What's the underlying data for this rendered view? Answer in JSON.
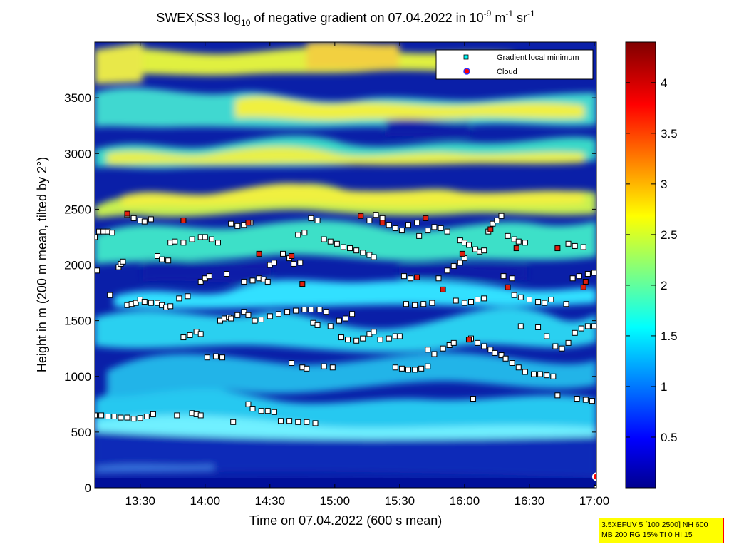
{
  "chart_data": {
    "type": "heatmap",
    "title": {
      "prefix": "SWEX",
      "sub1": "l",
      "mid": "SS3 log",
      "sub2": "10",
      "rest": " of negative gradient on 07.04.2022 in 10",
      "sup1": "-9",
      "unit1": " m",
      "sup2": "-1",
      "unit2": " sr",
      "sup3": "-1"
    },
    "xlabel": "Time on 07.04.2022 (600 s mean)",
    "ylabel": "Height in m (200 m mean, tilted by 2°)",
    "x_ticks": [
      "13:30",
      "14:00",
      "14:30",
      "15:00",
      "15:30",
      "16:00",
      "16:30",
      "17:00"
    ],
    "x_tick_minutes": [
      810,
      840,
      870,
      900,
      930,
      960,
      990,
      1020
    ],
    "xlim_minutes": [
      789,
      1021
    ],
    "y_ticks": [
      0,
      500,
      1000,
      1500,
      2000,
      2500,
      3000,
      3500
    ],
    "ylim": [
      0,
      4000
    ],
    "colorbar": {
      "range": [
        0,
        4.4
      ],
      "ticks": [
        "0.5",
        "1",
        "1.5",
        "2",
        "2.5",
        "3",
        "3.5",
        "4"
      ],
      "tick_values": [
        0.5,
        1,
        1.5,
        2,
        2.5,
        3,
        3.5,
        4
      ]
    },
    "legend": {
      "placement": "top-right",
      "entries": [
        {
          "label": "Gradient local minimum",
          "color": "#00ffff"
        },
        {
          "label": "Cloud",
          "color": "#ff0000"
        }
      ]
    },
    "series": [
      {
        "name": "Gradient local minimum",
        "points": [
          [
            789,
            2250
          ],
          [
            791,
            2300
          ],
          [
            793,
            2300
          ],
          [
            795,
            2300
          ],
          [
            797,
            2290
          ],
          [
            790,
            1950
          ],
          [
            796,
            1730
          ],
          [
            800,
            1980
          ],
          [
            801,
            2010
          ],
          [
            802,
            2030
          ],
          [
            789,
            650
          ],
          [
            792,
            650
          ],
          [
            795,
            640
          ],
          [
            798,
            640
          ],
          [
            801,
            630
          ],
          [
            804,
            630
          ],
          [
            807,
            620
          ],
          [
            810,
            625
          ],
          [
            813,
            640
          ],
          [
            816,
            660
          ],
          [
            804,
            1640
          ],
          [
            806,
            1650
          ],
          [
            808,
            1660
          ],
          [
            810,
            1690
          ],
          [
            812,
            1670
          ],
          [
            815,
            1660
          ],
          [
            818,
            1660
          ],
          [
            820,
            1640
          ],
          [
            822,
            1620
          ],
          [
            824,
            1630
          ],
          [
            804,
            2450
          ],
          [
            807,
            2420
          ],
          [
            810,
            2400
          ],
          [
            812,
            2390
          ],
          [
            815,
            2410
          ],
          [
            818,
            2080
          ],
          [
            820,
            2050
          ],
          [
            824,
            2200
          ],
          [
            826,
            2210
          ],
          [
            823,
            2040
          ],
          [
            827,
            650
          ],
          [
            834,
            670
          ],
          [
            836,
            660
          ],
          [
            838,
            650
          ],
          [
            830,
            1350
          ],
          [
            833,
            1370
          ],
          [
            836,
            1400
          ],
          [
            838,
            1380
          ],
          [
            828,
            1700
          ],
          [
            832,
            1720
          ],
          [
            830,
            2200
          ],
          [
            834,
            2230
          ],
          [
            838,
            2250
          ],
          [
            840,
            2250
          ],
          [
            843,
            2230
          ],
          [
            846,
            2200
          ],
          [
            838,
            1850
          ],
          [
            840,
            1880
          ],
          [
            842,
            1900
          ],
          [
            850,
            1920
          ],
          [
            841,
            1170
          ],
          [
            845,
            1180
          ],
          [
            848,
            1170
          ],
          [
            847,
            1500
          ],
          [
            849,
            1520
          ],
          [
            851,
            1530
          ],
          [
            852,
            1520
          ],
          [
            855,
            1550
          ],
          [
            858,
            1580
          ],
          [
            860,
            1550
          ],
          [
            852,
            2370
          ],
          [
            855,
            2350
          ],
          [
            858,
            2360
          ],
          [
            861,
            2380
          ],
          [
            853,
            590
          ],
          [
            858,
            1850
          ],
          [
            862,
            1860
          ],
          [
            865,
            1880
          ],
          [
            867,
            1870
          ],
          [
            869,
            1850
          ],
          [
            860,
            750
          ],
          [
            862,
            710
          ],
          [
            866,
            690
          ],
          [
            869,
            690
          ],
          [
            872,
            680
          ],
          [
            875,
            600
          ],
          [
            879,
            600
          ],
          [
            883,
            590
          ],
          [
            887,
            590
          ],
          [
            891,
            580
          ],
          [
            863,
            1500
          ],
          [
            866,
            1510
          ],
          [
            870,
            1540
          ],
          [
            874,
            1560
          ],
          [
            878,
            1580
          ],
          [
            882,
            1590
          ],
          [
            886,
            1600
          ],
          [
            889,
            1600
          ],
          [
            893,
            1600
          ],
          [
            896,
            1580
          ],
          [
            870,
            2000
          ],
          [
            872,
            2020
          ],
          [
            876,
            2100
          ],
          [
            879,
            2060
          ],
          [
            881,
            2010
          ],
          [
            884,
            2020
          ],
          [
            880,
            1120
          ],
          [
            885,
            1080
          ],
          [
            887,
            1070
          ],
          [
            890,
            1480
          ],
          [
            883,
            2270
          ],
          [
            886,
            2290
          ],
          [
            889,
            2420
          ],
          [
            892,
            2400
          ],
          [
            895,
            2230
          ],
          [
            898,
            2210
          ],
          [
            901,
            2190
          ],
          [
            904,
            2160
          ],
          [
            907,
            2150
          ],
          [
            910,
            2130
          ],
          [
            913,
            2110
          ],
          [
            916,
            2090
          ],
          [
            918,
            2070
          ],
          [
            892,
            1460
          ],
          [
            898,
            1450
          ],
          [
            902,
            1500
          ],
          [
            905,
            1520
          ],
          [
            908,
            1560
          ],
          [
            895,
            1090
          ],
          [
            899,
            1080
          ],
          [
            903,
            1350
          ],
          [
            906,
            1330
          ],
          [
            910,
            1320
          ],
          [
            913,
            1340
          ],
          [
            916,
            1380
          ],
          [
            918,
            1400
          ],
          [
            921,
            1330
          ],
          [
            925,
            1340
          ],
          [
            928,
            1360
          ],
          [
            930,
            1360
          ],
          [
            916,
            2400
          ],
          [
            919,
            2450
          ],
          [
            922,
            2420
          ],
          [
            925,
            2360
          ],
          [
            928,
            2330
          ],
          [
            931,
            2310
          ],
          [
            934,
            2360
          ],
          [
            938,
            2380
          ],
          [
            932,
            1900
          ],
          [
            935,
            1880
          ],
          [
            928,
            1080
          ],
          [
            931,
            1070
          ],
          [
            934,
            1060
          ],
          [
            937,
            1060
          ],
          [
            940,
            1070
          ],
          [
            943,
            1090
          ],
          [
            933,
            1650
          ],
          [
            937,
            1640
          ],
          [
            941,
            1650
          ],
          [
            945,
            1660
          ],
          [
            939,
            2260
          ],
          [
            943,
            2310
          ],
          [
            946,
            2340
          ],
          [
            949,
            2330
          ],
          [
            952,
            2300
          ],
          [
            948,
            1880
          ],
          [
            952,
            1950
          ],
          [
            955,
            1990
          ],
          [
            958,
            2020
          ],
          [
            960,
            2060
          ],
          [
            943,
            1240
          ],
          [
            946,
            1200
          ],
          [
            950,
            1250
          ],
          [
            953,
            1280
          ],
          [
            955,
            1300
          ],
          [
            956,
            1680
          ],
          [
            960,
            1660
          ],
          [
            963,
            1670
          ],
          [
            966,
            1690
          ],
          [
            969,
            1700
          ],
          [
            958,
            2220
          ],
          [
            960,
            2200
          ],
          [
            962,
            2180
          ],
          [
            965,
            2140
          ],
          [
            967,
            2120
          ],
          [
            969,
            2130
          ],
          [
            963,
            1340
          ],
          [
            966,
            1300
          ],
          [
            969,
            1270
          ],
          [
            972,
            1240
          ],
          [
            974,
            1210
          ],
          [
            977,
            1190
          ],
          [
            979,
            1160
          ],
          [
            982,
            1120
          ],
          [
            985,
            1080
          ],
          [
            988,
            1040
          ],
          [
            992,
            1020
          ],
          [
            995,
            1020
          ],
          [
            998,
            1010
          ],
          [
            1001,
            1000
          ],
          [
            971,
            2300
          ],
          [
            973,
            2370
          ],
          [
            975,
            2400
          ],
          [
            977,
            2440
          ],
          [
            980,
            2260
          ],
          [
            983,
            2230
          ],
          [
            985,
            2210
          ],
          [
            988,
            2200
          ],
          [
            978,
            1900
          ],
          [
            982,
            1880
          ],
          [
            983,
            1730
          ],
          [
            986,
            1710
          ],
          [
            990,
            1690
          ],
          [
            994,
            1670
          ],
          [
            997,
            1660
          ],
          [
            1000,
            1690
          ],
          [
            986,
            1450
          ],
          [
            994,
            1440
          ],
          [
            998,
            1360
          ],
          [
            1002,
            1270
          ],
          [
            1005,
            1250
          ],
          [
            1008,
            1300
          ],
          [
            1011,
            1390
          ],
          [
            1014,
            1430
          ],
          [
            1017,
            1450
          ],
          [
            1020,
            1450
          ],
          [
            1010,
            1880
          ],
          [
            1013,
            1900
          ],
          [
            1017,
            1920
          ],
          [
            1020,
            1930
          ],
          [
            1008,
            2190
          ],
          [
            1011,
            2170
          ],
          [
            1015,
            2160
          ],
          [
            1007,
            1650
          ],
          [
            1003,
            830
          ],
          [
            1012,
            800
          ],
          [
            1016,
            790
          ],
          [
            1019,
            780
          ],
          [
            1021,
            0
          ],
          [
            964,
            800
          ]
        ]
      },
      {
        "name": "Cloud",
        "points": [
          [
            1021,
            100
          ],
          [
            804,
            2460
          ],
          [
            830,
            2400
          ],
          [
            860,
            2380
          ],
          [
            865,
            2100
          ],
          [
            880,
            2080
          ],
          [
            885,
            1830
          ],
          [
            912,
            2440
          ],
          [
            922,
            2380
          ],
          [
            938,
            1890
          ],
          [
            942,
            2420
          ],
          [
            950,
            1780
          ],
          [
            959,
            2100
          ],
          [
            962,
            1330
          ],
          [
            972,
            2320
          ],
          [
            980,
            1800
          ],
          [
            984,
            2150
          ],
          [
            1015,
            1800
          ],
          [
            1016,
            1850
          ],
          [
            1003,
            2150
          ]
        ]
      }
    ]
  },
  "settings_box": {
    "line1": "3.5XEFUV 5 [100 2500] NH 600",
    "line2": "MB 200 RG 15% TI 0 HI 15"
  }
}
